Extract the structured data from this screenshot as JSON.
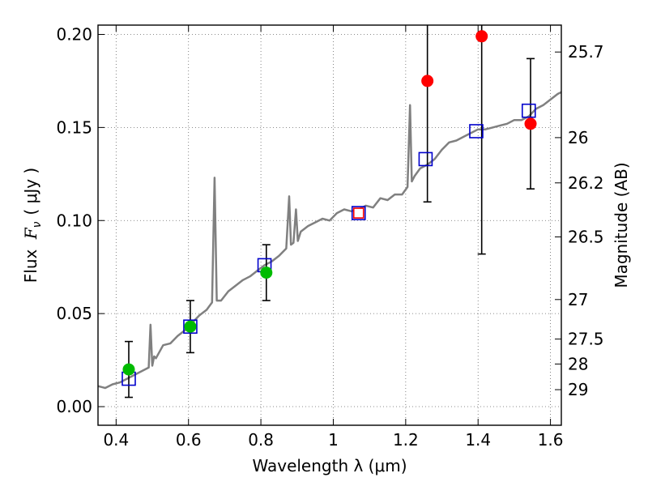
{
  "chart_data": {
    "type": "scatter",
    "xlabel": "Wavelength  λ (μm)",
    "ylabel_prefix": "Flux",
    "ylabel_var": "F",
    "ylabel_sub": "ν",
    "ylabel_unit": "( μJy )",
    "y2label": "Magnitude (AB)",
    "xlim": [
      0.35,
      1.63
    ],
    "ylim": [
      -0.01,
      0.205
    ],
    "grid": true,
    "x_ticks": [
      0.4,
      0.6,
      0.8,
      1.0,
      1.2,
      1.4,
      1.6
    ],
    "x_tick_labels": [
      "0.4",
      "0.6",
      "0.8",
      "1",
      "1.2",
      "1.4",
      "1.6"
    ],
    "y_ticks": [
      0.0,
      0.05,
      0.1,
      0.15,
      0.2
    ],
    "y_tick_labels": [
      "0.00",
      "0.05",
      "0.10",
      "0.15",
      "0.20"
    ],
    "mag_ticks": [
      "25.7",
      "26",
      "26.2",
      "26.5",
      "27",
      "27.5",
      "28",
      "29"
    ],
    "colors": {
      "model": "#808080",
      "green": "#00bb00",
      "red": "#ff0000",
      "blue_box": "#0000cc",
      "errorbar": "#000000",
      "grid": "#666666"
    },
    "series": [
      {
        "name": "model_spectrum",
        "type": "line",
        "x": [
          0.35,
          0.37,
          0.39,
          0.41,
          0.43,
          0.45,
          0.47,
          0.49,
          0.495,
          0.5,
          0.505,
          0.51,
          0.53,
          0.55,
          0.57,
          0.59,
          0.61,
          0.63,
          0.65,
          0.665,
          0.672,
          0.678,
          0.69,
          0.71,
          0.73,
          0.75,
          0.77,
          0.79,
          0.81,
          0.83,
          0.85,
          0.87,
          0.878,
          0.883,
          0.89,
          0.897,
          0.902,
          0.91,
          0.93,
          0.95,
          0.97,
          0.99,
          1.01,
          1.03,
          1.05,
          1.07,
          1.09,
          1.11,
          1.13,
          1.15,
          1.17,
          1.19,
          1.205,
          1.212,
          1.217,
          1.225,
          1.24,
          1.26,
          1.28,
          1.3,
          1.32,
          1.34,
          1.36,
          1.38,
          1.4,
          1.42,
          1.44,
          1.46,
          1.48,
          1.5,
          1.52,
          1.54,
          1.56,
          1.58,
          1.6,
          1.62,
          1.63
        ],
        "y": [
          0.011,
          0.01,
          0.012,
          0.013,
          0.015,
          0.017,
          0.019,
          0.021,
          0.044,
          0.022,
          0.027,
          0.026,
          0.033,
          0.034,
          0.038,
          0.041,
          0.045,
          0.049,
          0.052,
          0.056,
          0.123,
          0.057,
          0.057,
          0.062,
          0.065,
          0.068,
          0.07,
          0.073,
          0.076,
          0.078,
          0.081,
          0.085,
          0.113,
          0.087,
          0.088,
          0.106,
          0.089,
          0.094,
          0.097,
          0.099,
          0.101,
          0.1,
          0.104,
          0.106,
          0.105,
          0.106,
          0.108,
          0.107,
          0.112,
          0.111,
          0.114,
          0.114,
          0.118,
          0.162,
          0.121,
          0.124,
          0.128,
          0.13,
          0.133,
          0.138,
          0.142,
          0.143,
          0.145,
          0.147,
          0.149,
          0.149,
          0.15,
          0.151,
          0.152,
          0.154,
          0.154,
          0.156,
          0.16,
          0.162,
          0.165,
          0.168,
          0.169
        ]
      },
      {
        "name": "green_points",
        "type": "scatter",
        "x": [
          0.435,
          0.605,
          0.815
        ],
        "y": [
          0.02,
          0.043,
          0.072
        ],
        "err": [
          0.015,
          0.014,
          0.015
        ]
      },
      {
        "name": "red_points",
        "type": "scatter",
        "x": [
          1.26,
          1.41,
          1.545
        ],
        "y": [
          0.175,
          0.199,
          0.152
        ],
        "err": [
          0.065,
          0.117,
          0.035
        ]
      },
      {
        "name": "model_boxes",
        "type": "scatter",
        "x": [
          0.435,
          0.605,
          0.81,
          1.07,
          1.255,
          1.395,
          1.54
        ],
        "y": [
          0.015,
          0.043,
          0.076,
          0.104,
          0.133,
          0.148,
          0.159
        ]
      },
      {
        "name": "reference_point",
        "type": "scatter",
        "x": [
          1.07
        ],
        "y": [
          0.104
        ]
      }
    ]
  }
}
